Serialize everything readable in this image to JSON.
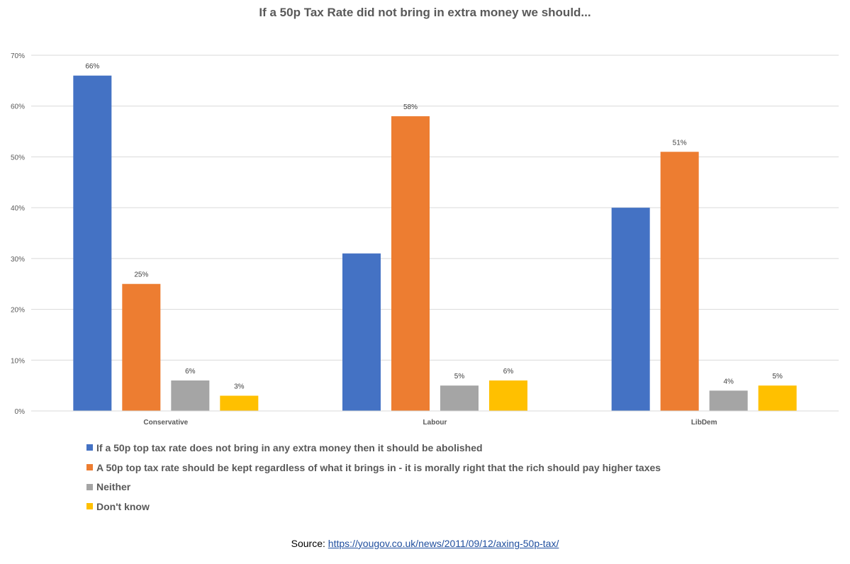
{
  "chart_data": {
    "type": "bar",
    "title": "If a 50p Tax Rate did not bring in extra money we should...",
    "categories": [
      "Conservative",
      "Labour",
      "LibDem"
    ],
    "series": [
      {
        "name": "If a 50p top tax rate does not bring in any extra money then it should be abolished",
        "color": "#4472c4",
        "values": [
          66,
          31,
          40
        ],
        "labels": [
          "66%",
          null,
          null
        ]
      },
      {
        "name": "A 50p top tax rate should be kept regardless of what it brings in - it is morally right that the rich should pay higher taxes",
        "color": "#ed7d31",
        "values": [
          25,
          58,
          51
        ],
        "labels": [
          "25%",
          "58%",
          "51%"
        ]
      },
      {
        "name": "Neither",
        "color": "#a5a5a5",
        "values": [
          6,
          5,
          4
        ],
        "labels": [
          "6%",
          "5%",
          "4%"
        ]
      },
      {
        "name": "Don't know",
        "color": "#ffc000",
        "values": [
          3,
          6,
          5
        ],
        "labels": [
          "3%",
          "6%",
          "5%"
        ]
      }
    ],
    "yticks": [
      "0%",
      "10%",
      "20%",
      "30%",
      "40%",
      "50%",
      "60%",
      "70%"
    ],
    "ylim": [
      0,
      70
    ],
    "grid": true,
    "legend_position": "bottom-left"
  },
  "source": {
    "label": "Source:",
    "url_text": "https://yougov.co.uk/news/2011/09/12/axing-50p-tax/"
  }
}
